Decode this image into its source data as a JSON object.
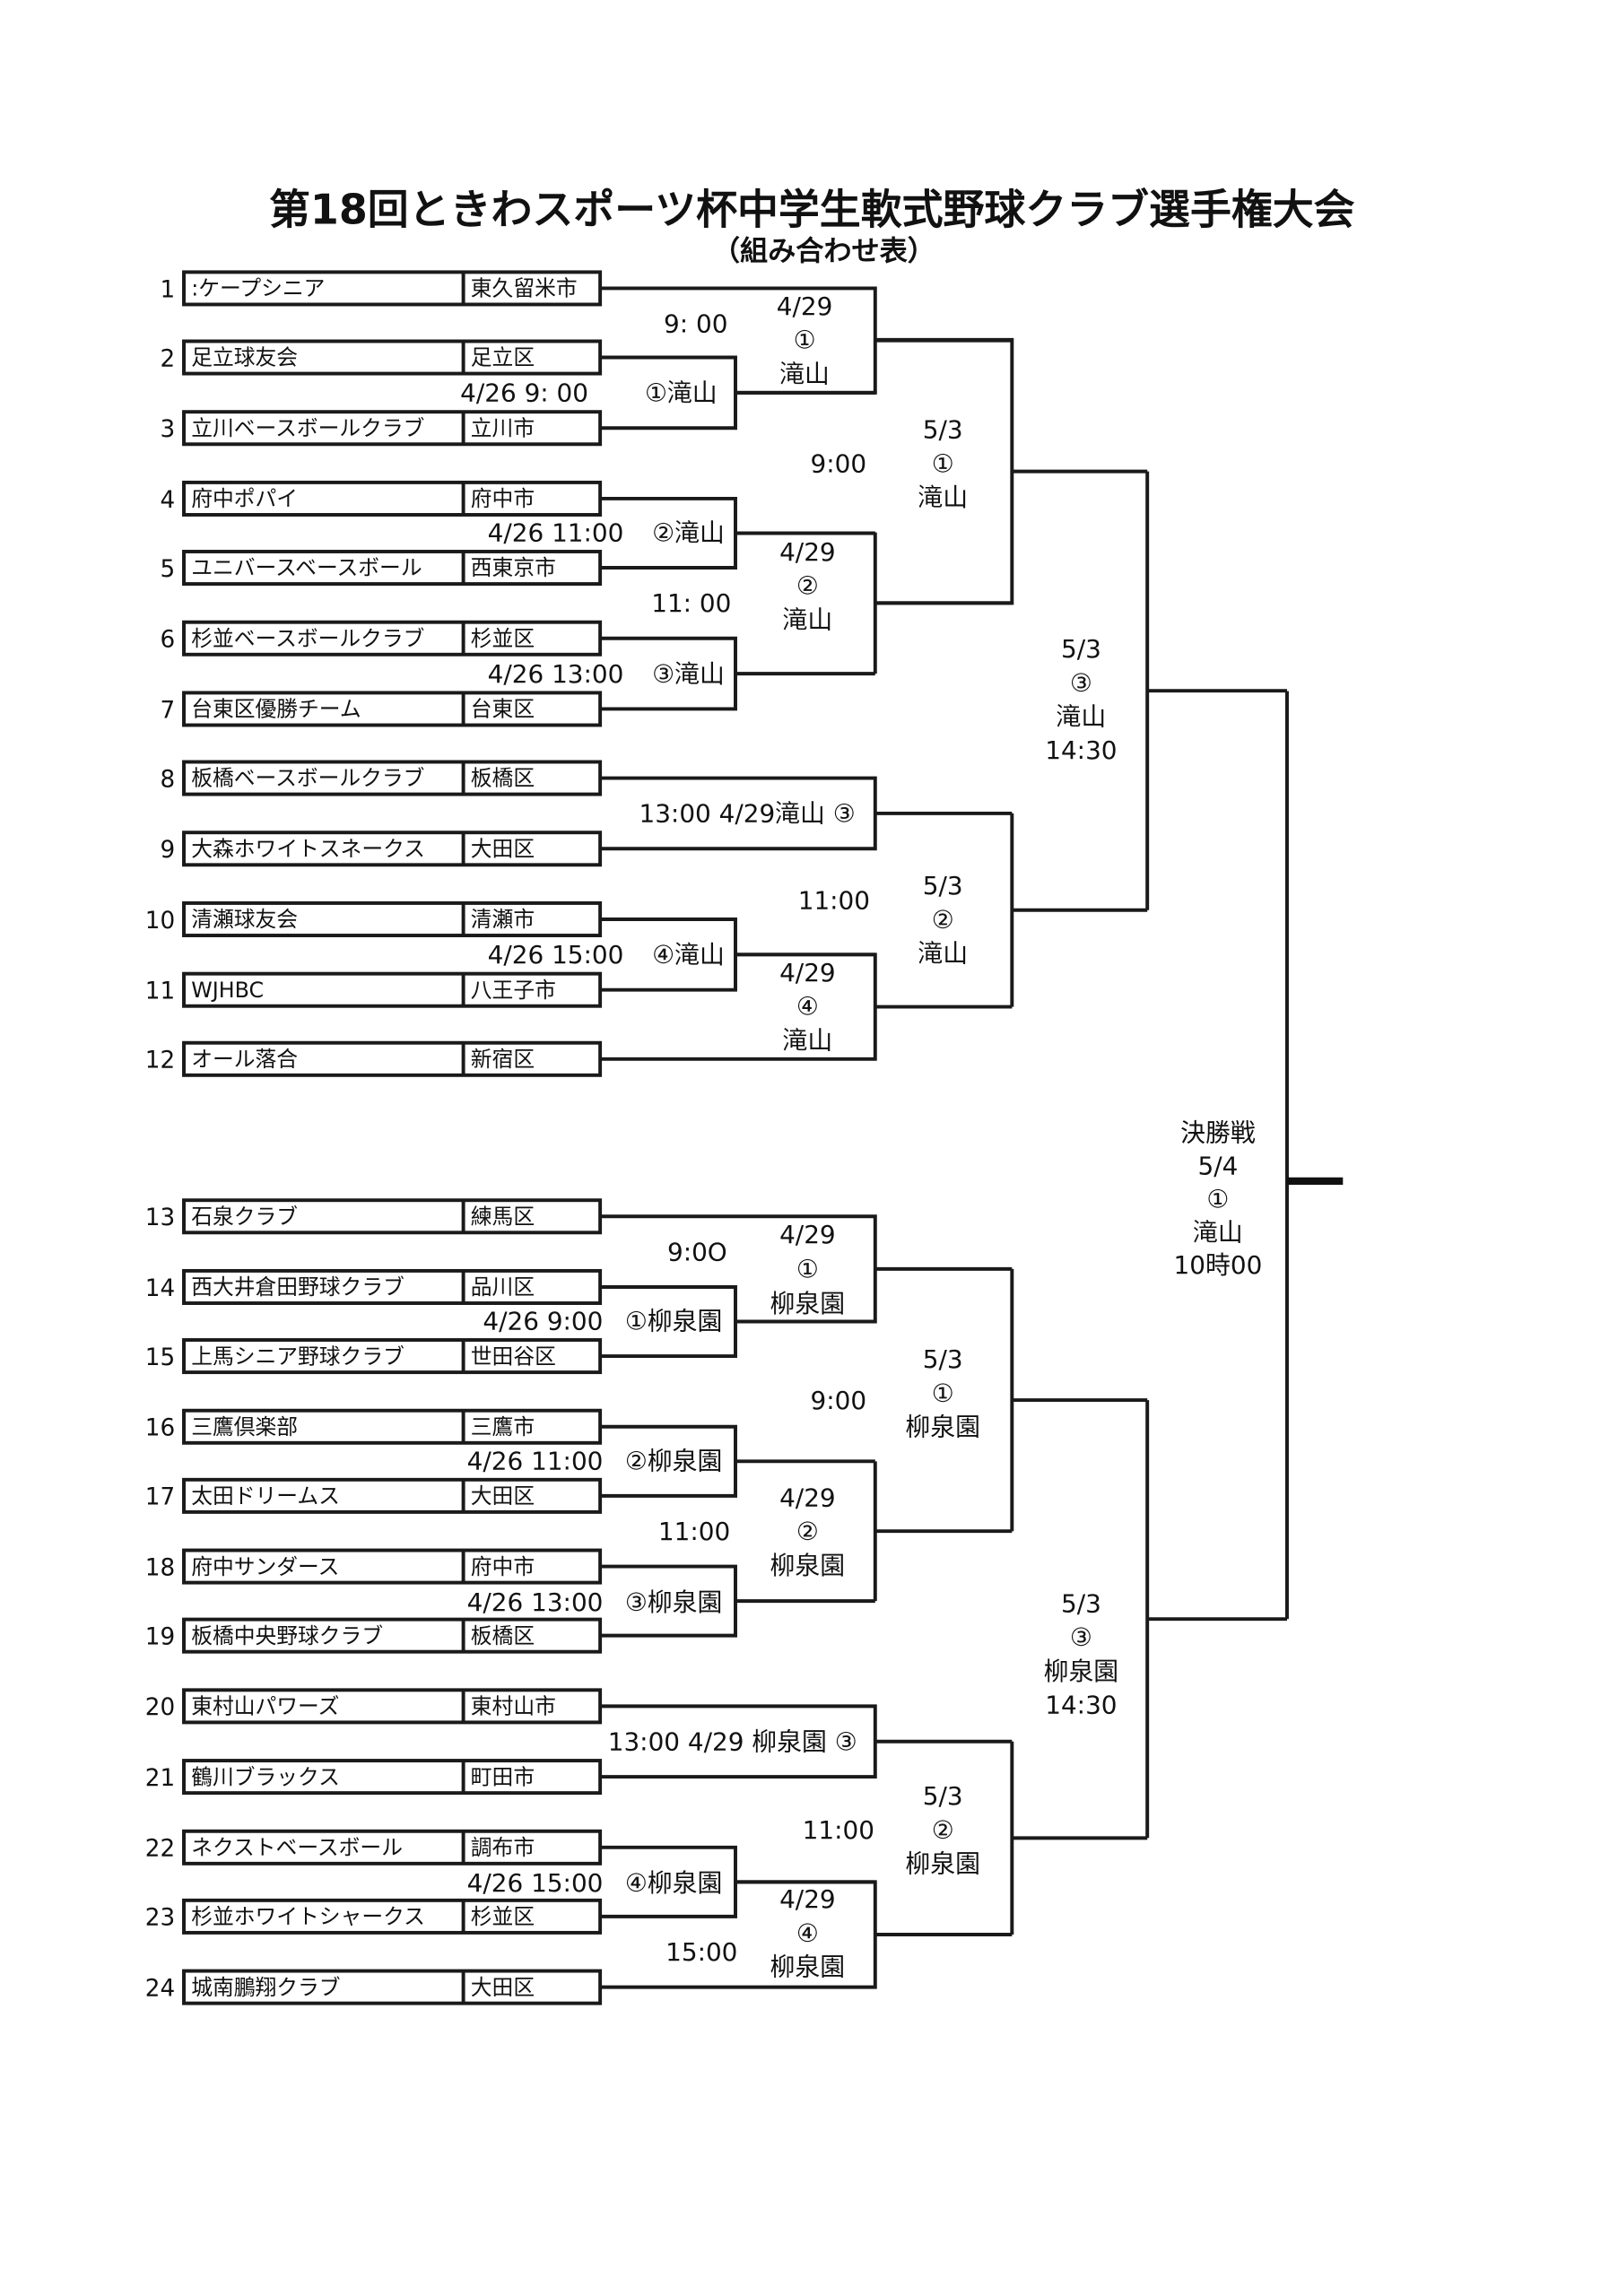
{
  "title": "第18回ときわスポーツ杯中学生軟式野球クラブ選手権大会",
  "subtitle": "（組み合わせ表）",
  "teams": [
    {
      "no": "1",
      "name": ":ケープシニア",
      "area": "東久留米市"
    },
    {
      "no": "2",
      "name": "足立球友会",
      "area": "足立区"
    },
    {
      "no": "3",
      "name": "立川ベースボールクラブ",
      "area": "立川市"
    },
    {
      "no": "4",
      "name": "府中ポパイ",
      "area": "府中市"
    },
    {
      "no": "5",
      "name": "ユニバースベースボール",
      "area": "西東京市"
    },
    {
      "no": "6",
      "name": "杉並ベースボールクラブ",
      "area": "杉並区"
    },
    {
      "no": "7",
      "name": "台東区優勝チーム",
      "area": "台東区"
    },
    {
      "no": "8",
      "name": "板橋ベースボールクラブ",
      "area": "板橋区"
    },
    {
      "no": "9",
      "name": "大森ホワイトスネークス",
      "area": "大田区"
    },
    {
      "no": "10",
      "name": "清瀬球友会",
      "area": "清瀬市"
    },
    {
      "no": "11",
      "name": "WJHBC",
      "area": "八王子市"
    },
    {
      "no": "12",
      "name": "オール落合",
      "area": "新宿区"
    },
    {
      "no": "13",
      "name": "石泉クラブ",
      "area": "練馬区"
    },
    {
      "no": "14",
      "name": "西大井倉田野球クラブ",
      "area": "品川区"
    },
    {
      "no": "15",
      "name": "上馬シニア野球クラブ",
      "area": "世田谷区"
    },
    {
      "no": "16",
      "name": "三鷹倶楽部",
      "area": "三鷹市"
    },
    {
      "no": "17",
      "name": "太田ドリームス",
      "area": "大田区"
    },
    {
      "no": "18",
      "name": "府中サンダース",
      "area": "府中市"
    },
    {
      "no": "19",
      "name": "板橋中央野球クラブ",
      "area": "板橋区"
    },
    {
      "no": "20",
      "name": "東村山パワーズ",
      "area": "東村山市"
    },
    {
      "no": "21",
      "name": "鶴川ブラックス",
      "area": "町田市"
    },
    {
      "no": "22",
      "name": "ネクストベースボール",
      "area": "調布市"
    },
    {
      "no": "23",
      "name": "杉並ホワイトシャークス",
      "area": "杉並区"
    },
    {
      "no": "24",
      "name": "城南鵬翔クラブ",
      "area": "大田区"
    }
  ],
  "labels": [
    [
      "9: 00"
    ],
    [
      "4/29",
      "①",
      "滝山"
    ],
    [
      "4/26  9: 00"
    ],
    [
      "①滝山"
    ],
    [
      "9:00"
    ],
    [
      "5/3",
      "①",
      "滝山"
    ],
    [
      "4/26  11:00"
    ],
    [
      "②滝山"
    ],
    [
      "4/29",
      "②",
      "滝山"
    ],
    [
      "11: 00"
    ],
    [
      "4/26  13:00"
    ],
    [
      "③滝山"
    ],
    [
      "5/3",
      "③",
      "滝山",
      "14:30"
    ],
    [
      "13:00  4/29滝山 ③"
    ],
    [
      "11:00"
    ],
    [
      "5/3",
      "②",
      "滝山"
    ],
    [
      "4/26  15:00"
    ],
    [
      "④滝山"
    ],
    [
      "4/29",
      "④",
      "滝山"
    ],
    [
      "決勝戦",
      "5/4",
      "①",
      "滝山",
      "10時00"
    ],
    [
      "9:0O"
    ],
    [
      "4/29",
      "①",
      "柳泉園"
    ],
    [
      "4/26  9:00"
    ],
    [
      "①柳泉園"
    ],
    [
      "9:00"
    ],
    [
      "5/3",
      "①",
      "柳泉園"
    ],
    [
      "4/26 11:00"
    ],
    [
      "②柳泉園"
    ],
    [
      "4/29",
      "②",
      "柳泉園"
    ],
    [
      "11:00"
    ],
    [
      "4/26  13:00"
    ],
    [
      "③柳泉園"
    ],
    [
      "5/3",
      "③",
      "柳泉園",
      "14:30"
    ],
    [
      "13:00 4/29 柳泉園 ③"
    ],
    [
      "11:00"
    ],
    [
      "5/3",
      "②",
      "柳泉園"
    ],
    [
      "4/26  15:00"
    ],
    [
      "④柳泉園"
    ],
    [
      "4/29",
      "④",
      "柳泉園"
    ],
    [
      "15:00"
    ]
  ]
}
